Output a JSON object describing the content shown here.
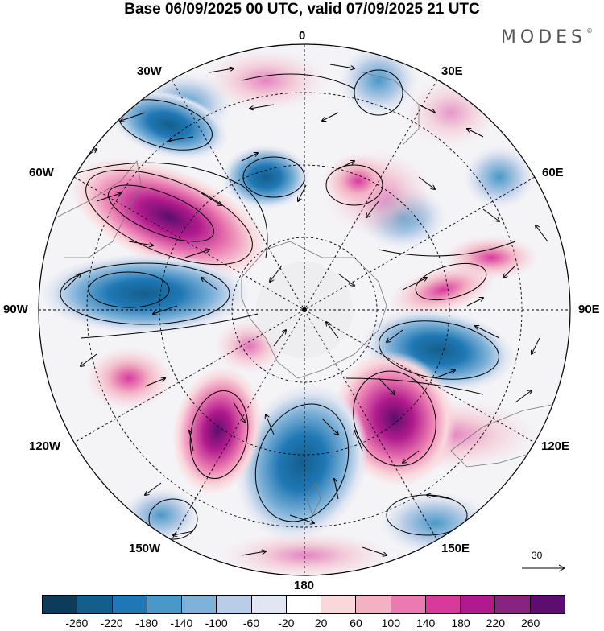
{
  "title": "Base 06/09/2025 00 UTC, valid 07/09/2025 21 UTC",
  "brand": {
    "name": "MODES",
    "mark": "©"
  },
  "longitude_labels": {
    "lon_0": "0",
    "lon_30e": "30E",
    "lon_60e": "60E",
    "lon_90e": "90E",
    "lon_120e": "120E",
    "lon_150e": "150E",
    "lon_180": "180",
    "lon_150w": "150W",
    "lon_120w": "120W",
    "lon_90w": "90W",
    "lon_60w": "60W",
    "lon_30w": "30W"
  },
  "reference_vector": {
    "value": "30"
  },
  "colorbar": {
    "colors": [
      "#0c3b5c",
      "#145e8c",
      "#1f78b4",
      "#4a98c8",
      "#7fb2d8",
      "#b9cde6",
      "#e2e6f2",
      "#ffffff",
      "#f9d8dc",
      "#f2b2c4",
      "#ea7ab0",
      "#d83a9c",
      "#b01a8c",
      "#862480",
      "#5b0e6e"
    ],
    "ticks": [
      "-260",
      "-220",
      "-180",
      "-140",
      "-100",
      "-60",
      "-20",
      "20",
      "60",
      "100",
      "140",
      "180",
      "220",
      "260"
    ]
  }
}
